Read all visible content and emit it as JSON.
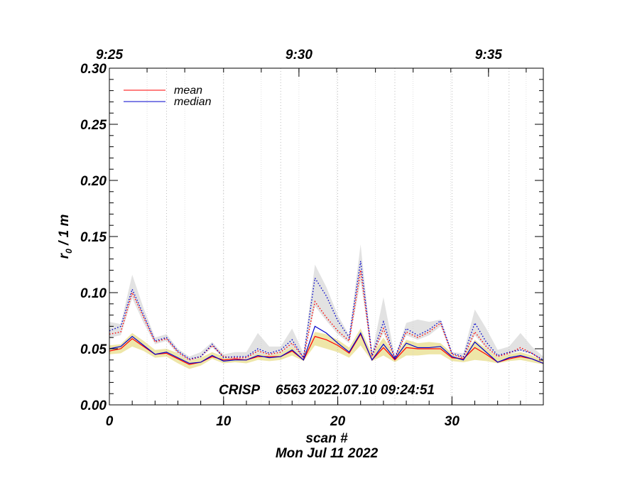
{
  "chart_data": {
    "type": "line",
    "ylabel": "r",
    "ylabel_sub": "0",
    "ylabel_suffix": " / 1 m",
    "xlabel": "scan #",
    "date_label": "Mon Jul 11 2022",
    "info_instrument": "CRISP",
    "info_details": "6563 2022.07.10 09:24:51",
    "xlim": [
      0,
      38
    ],
    "ylim": [
      0.0,
      0.3
    ],
    "x_ticks": [
      0,
      10,
      20,
      30
    ],
    "y_ticks": [
      0.0,
      0.05,
      0.1,
      0.15,
      0.2,
      0.25,
      0.3
    ],
    "y_tick_labels": [
      "0.00",
      "0.05",
      "0.10",
      "0.15",
      "0.20",
      "0.25",
      "0.30"
    ],
    "time_ticks": [
      {
        "scan": 0,
        "label": "9:25"
      },
      {
        "scan": 16.6,
        "label": "9:30"
      },
      {
        "scan": 33.2,
        "label": "9:35"
      }
    ],
    "vertical_gridlines_scan": [
      5,
      10,
      15,
      20,
      25,
      30,
      35
    ],
    "time_gridlines_scan": [
      3.3,
      6.6,
      10,
      13.3,
      16.6,
      19.9,
      23.3,
      26.6,
      29.9,
      33.2,
      36.5
    ],
    "colors": {
      "mean": "#ff0000",
      "median": "#0000cc",
      "band_low": "#eee6a8",
      "band_high": "#e2e2e2"
    },
    "x": [
      0,
      1,
      2,
      3,
      4,
      5,
      6,
      7,
      8,
      9,
      10,
      11,
      12,
      13,
      14,
      15,
      16,
      17,
      18,
      19,
      20,
      21,
      22,
      23,
      24,
      25,
      26,
      27,
      28,
      29,
      30,
      31,
      32,
      33,
      34,
      35,
      36,
      37,
      38
    ],
    "series": [
      {
        "name": "mean",
        "style": "solid",
        "values": [
          0.048,
          0.05,
          0.059,
          0.052,
          0.045,
          0.046,
          0.041,
          0.036,
          0.038,
          0.043,
          0.04,
          0.041,
          0.04,
          0.043,
          0.043,
          0.043,
          0.048,
          0.04,
          0.061,
          0.058,
          0.053,
          0.046,
          0.063,
          0.04,
          0.051,
          0.04,
          0.051,
          0.05,
          0.05,
          0.05,
          0.042,
          0.041,
          0.051,
          0.045,
          0.038,
          0.041,
          0.043,
          0.041,
          0.037
        ]
      },
      {
        "name": "median",
        "style": "solid",
        "values": [
          0.05,
          0.052,
          0.061,
          0.053,
          0.045,
          0.047,
          0.042,
          0.037,
          0.038,
          0.044,
          0.039,
          0.04,
          0.04,
          0.044,
          0.042,
          0.043,
          0.049,
          0.04,
          0.07,
          0.064,
          0.055,
          0.047,
          0.064,
          0.04,
          0.054,
          0.041,
          0.055,
          0.051,
          0.051,
          0.052,
          0.043,
          0.04,
          0.056,
          0.047,
          0.038,
          0.042,
          0.044,
          0.041,
          0.037
        ]
      },
      {
        "name": "mean_high",
        "style": "dotted",
        "color": "#ff0000",
        "values": [
          0.063,
          0.065,
          0.1,
          0.078,
          0.056,
          0.059,
          0.047,
          0.04,
          0.043,
          0.053,
          0.043,
          0.042,
          0.042,
          0.048,
          0.045,
          0.047,
          0.055,
          0.042,
          0.092,
          0.078,
          0.066,
          0.057,
          0.12,
          0.043,
          0.068,
          0.041,
          0.065,
          0.06,
          0.065,
          0.073,
          0.045,
          0.042,
          0.065,
          0.052,
          0.043,
          0.046,
          0.051,
          0.046,
          0.039
        ]
      },
      {
        "name": "median_high",
        "style": "dotted",
        "color": "#0000cc",
        "values": [
          0.066,
          0.07,
          0.103,
          0.08,
          0.057,
          0.06,
          0.048,
          0.041,
          0.043,
          0.054,
          0.042,
          0.043,
          0.043,
          0.05,
          0.046,
          0.049,
          0.058,
          0.042,
          0.113,
          0.097,
          0.075,
          0.06,
          0.128,
          0.044,
          0.074,
          0.042,
          0.068,
          0.062,
          0.067,
          0.075,
          0.046,
          0.043,
          0.073,
          0.056,
          0.044,
          0.047,
          0.049,
          0.046,
          0.04
        ]
      }
    ],
    "bands": [
      {
        "name": "low_band",
        "lower": [
          0.045,
          0.046,
          0.052,
          0.048,
          0.042,
          0.043,
          0.037,
          0.032,
          0.035,
          0.041,
          0.037,
          0.038,
          0.037,
          0.04,
          0.039,
          0.04,
          0.044,
          0.039,
          0.053,
          0.05,
          0.047,
          0.042,
          0.053,
          0.039,
          0.044,
          0.038,
          0.044,
          0.044,
          0.045,
          0.045,
          0.039,
          0.038,
          0.04,
          0.039,
          0.037,
          0.039,
          0.04,
          0.038,
          0.036
        ],
        "upper": [
          0.053,
          0.054,
          0.064,
          0.057,
          0.049,
          0.05,
          0.046,
          0.04,
          0.042,
          0.047,
          0.043,
          0.044,
          0.045,
          0.05,
          0.047,
          0.049,
          0.055,
          0.044,
          0.065,
          0.063,
          0.058,
          0.051,
          0.068,
          0.045,
          0.06,
          0.044,
          0.058,
          0.055,
          0.056,
          0.055,
          0.046,
          0.045,
          0.058,
          0.05,
          0.043,
          0.045,
          0.047,
          0.044,
          0.039
        ]
      },
      {
        "name": "high_band",
        "lower": [
          0.06,
          0.062,
          0.095,
          0.073,
          0.054,
          0.057,
          0.045,
          0.039,
          0.042,
          0.051,
          0.042,
          0.041,
          0.041,
          0.046,
          0.044,
          0.046,
          0.052,
          0.041,
          0.088,
          0.075,
          0.063,
          0.055,
          0.11,
          0.042,
          0.064,
          0.04,
          0.062,
          0.058,
          0.062,
          0.07,
          0.044,
          0.041,
          0.062,
          0.05,
          0.042,
          0.045,
          0.048,
          0.045,
          0.038
        ],
        "upper": [
          0.074,
          0.072,
          0.116,
          0.086,
          0.06,
          0.063,
          0.05,
          0.043,
          0.047,
          0.056,
          0.045,
          0.047,
          0.047,
          0.064,
          0.052,
          0.052,
          0.068,
          0.046,
          0.125,
          0.105,
          0.08,
          0.062,
          0.143,
          0.046,
          0.096,
          0.043,
          0.073,
          0.076,
          0.074,
          0.076,
          0.047,
          0.046,
          0.085,
          0.068,
          0.049,
          0.052,
          0.064,
          0.052,
          0.043
        ]
      }
    ],
    "legend": {
      "position": "top-left",
      "items": [
        "mean",
        "median"
      ]
    }
  }
}
